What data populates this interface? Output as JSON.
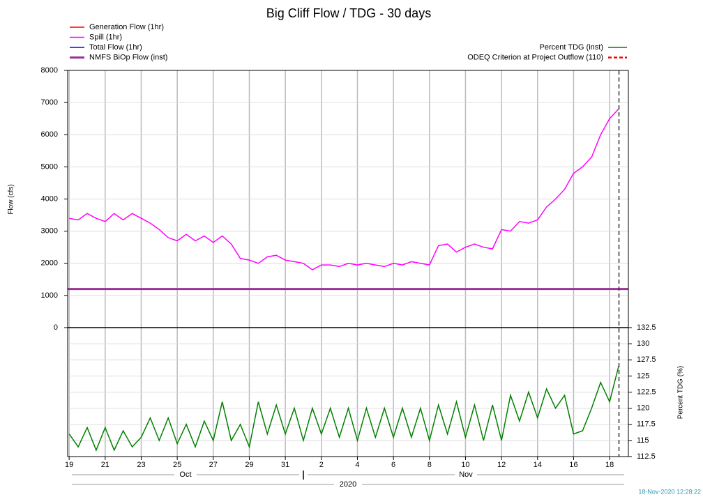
{
  "chart_data": [
    {
      "type": "line",
      "title": "Big Cliff Flow / TDG - 30 days",
      "y_label": "Flow (cfs)",
      "x": [
        "2020-10-19T00:00",
        "2020-10-19T12:00",
        "2020-10-20T00:00",
        "2020-10-20T12:00",
        "2020-10-21T00:00",
        "2020-10-21T12:00",
        "2020-10-22T00:00",
        "2020-10-22T12:00",
        "2020-10-23T00:00",
        "2020-10-23T12:00",
        "2020-10-24T00:00",
        "2020-10-24T12:00",
        "2020-10-25T00:00",
        "2020-10-25T12:00",
        "2020-10-26T00:00",
        "2020-10-26T12:00",
        "2020-10-27T00:00",
        "2020-10-27T12:00",
        "2020-10-28T00:00",
        "2020-10-28T12:00",
        "2020-10-29T00:00",
        "2020-10-29T12:00",
        "2020-10-30T00:00",
        "2020-10-30T12:00",
        "2020-10-31T00:00",
        "2020-10-31T12:00",
        "2020-11-01T00:00",
        "2020-11-01T12:00",
        "2020-11-02T00:00",
        "2020-11-02T12:00",
        "2020-11-03T00:00",
        "2020-11-03T12:00",
        "2020-11-04T00:00",
        "2020-11-04T12:00",
        "2020-11-05T00:00",
        "2020-11-05T12:00",
        "2020-11-06T00:00",
        "2020-11-06T12:00",
        "2020-11-07T00:00",
        "2020-11-07T12:00",
        "2020-11-08T00:00",
        "2020-11-08T12:00",
        "2020-11-09T00:00",
        "2020-11-09T12:00",
        "2020-11-10T00:00",
        "2020-11-10T12:00",
        "2020-11-11T00:00",
        "2020-11-11T12:00",
        "2020-11-12T00:00",
        "2020-11-12T12:00",
        "2020-11-13T00:00",
        "2020-11-13T12:00",
        "2020-11-14T00:00",
        "2020-11-14T12:00",
        "2020-11-15T00:00",
        "2020-11-15T12:00",
        "2020-11-16T00:00",
        "2020-11-16T12:00",
        "2020-11-17T00:00",
        "2020-11-17T12:00",
        "2020-11-18T00:00",
        "2020-11-18T12:00"
      ],
      "series": [
        {
          "name": "Generation Flow (1hr)",
          "color": "#ff0000"
        },
        {
          "name": "Spill (1hr)",
          "color": "#ff00ff",
          "values": [
            3400,
            3350,
            3550,
            3400,
            3300,
            3550,
            3350,
            3550,
            3400,
            3250,
            3050,
            2800,
            2700,
            2900,
            2700,
            2850,
            2650,
            2850,
            2600,
            2150,
            2100,
            2000,
            2200,
            2250,
            2100,
            2050,
            2000,
            1800,
            1950,
            1950,
            1900,
            2000,
            1950,
            2000,
            1950,
            1900,
            2000,
            1950,
            2050,
            2000,
            1950,
            2550,
            2600,
            2350,
            2500,
            2600,
            2500,
            2450,
            3050,
            3000,
            3300,
            3250,
            3350,
            3750,
            4000,
            4300,
            4800,
            5000,
            5300,
            6000,
            6500,
            6800
          ]
        },
        {
          "name": "Total Flow (1hr)",
          "color": "#0000ff"
        },
        {
          "name": "NMFS BiOp Flow (inst)",
          "color": "#993399",
          "value": 1200
        }
      ],
      "xlim": [
        "2020-10-18T22:00",
        "2020-11-19T01:00"
      ],
      "xticks": [
        {
          "value": "2020-10-19",
          "label": "19"
        },
        {
          "value": "2020-10-21",
          "label": "21"
        },
        {
          "value": "2020-10-23",
          "label": "23"
        },
        {
          "value": "2020-10-25",
          "label": "25"
        },
        {
          "value": "2020-10-27",
          "label": "27"
        },
        {
          "value": "2020-10-29",
          "label": "29"
        },
        {
          "value": "2020-10-31",
          "label": "31"
        },
        {
          "value": "2020-11-02",
          "label": "2"
        },
        {
          "value": "2020-11-04",
          "label": "4"
        },
        {
          "value": "2020-11-06",
          "label": "6"
        },
        {
          "value": "2020-11-08",
          "label": "8"
        },
        {
          "value": "2020-11-10",
          "label": "10"
        },
        {
          "value": "2020-11-12",
          "label": "12"
        },
        {
          "value": "2020-11-14",
          "label": "14"
        },
        {
          "value": "2020-11-16",
          "label": "16"
        },
        {
          "value": "2020-11-18",
          "label": "18"
        }
      ],
      "month_groups": [
        {
          "label": "Oct",
          "start": "2020-10-01"
        },
        {
          "label": "Nov",
          "start": "2020-11-01"
        }
      ],
      "year": "2020",
      "now": "2020-11-18T12:28",
      "timestamp": "18-Nov-2020 12:28:22",
      "ylim": [
        0,
        8000
      ],
      "yticks": [
        0,
        1000,
        2000,
        3000,
        4000,
        5000,
        6000,
        7000,
        8000
      ],
      "grid": true
    },
    {
      "type": "line",
      "y_label": "Percent TDG (%)",
      "series": [
        {
          "name": "Percent TDG (inst)",
          "color": "#008000",
          "values": [
            116,
            114,
            117,
            113.5,
            117,
            113.5,
            116.5,
            114,
            115.5,
            118.5,
            115,
            118.5,
            114.5,
            117.5,
            114,
            118,
            115,
            121,
            115,
            117.5,
            114,
            121,
            116,
            120.5,
            116,
            120,
            115,
            120,
            116,
            120,
            115.5,
            120,
            115,
            120,
            115.5,
            120,
            115.5,
            120,
            115.5,
            120,
            115,
            120.5,
            116,
            121,
            115.5,
            120.5,
            115,
            120.5,
            115,
            122,
            118,
            122.5,
            118.5,
            123,
            120,
            122,
            116,
            116.5,
            120,
            124,
            121,
            126.5
          ]
        },
        {
          "name": "ODEQ Criterion at Project Outflow (110)",
          "color": "#ff0000",
          "value": 110,
          "dashed": true
        }
      ],
      "ylim": [
        112.5,
        132.5
      ],
      "yticks": [
        112.5,
        115,
        117.5,
        120,
        122.5,
        125,
        127.5,
        130,
        132.5
      ],
      "grid": true
    }
  ]
}
